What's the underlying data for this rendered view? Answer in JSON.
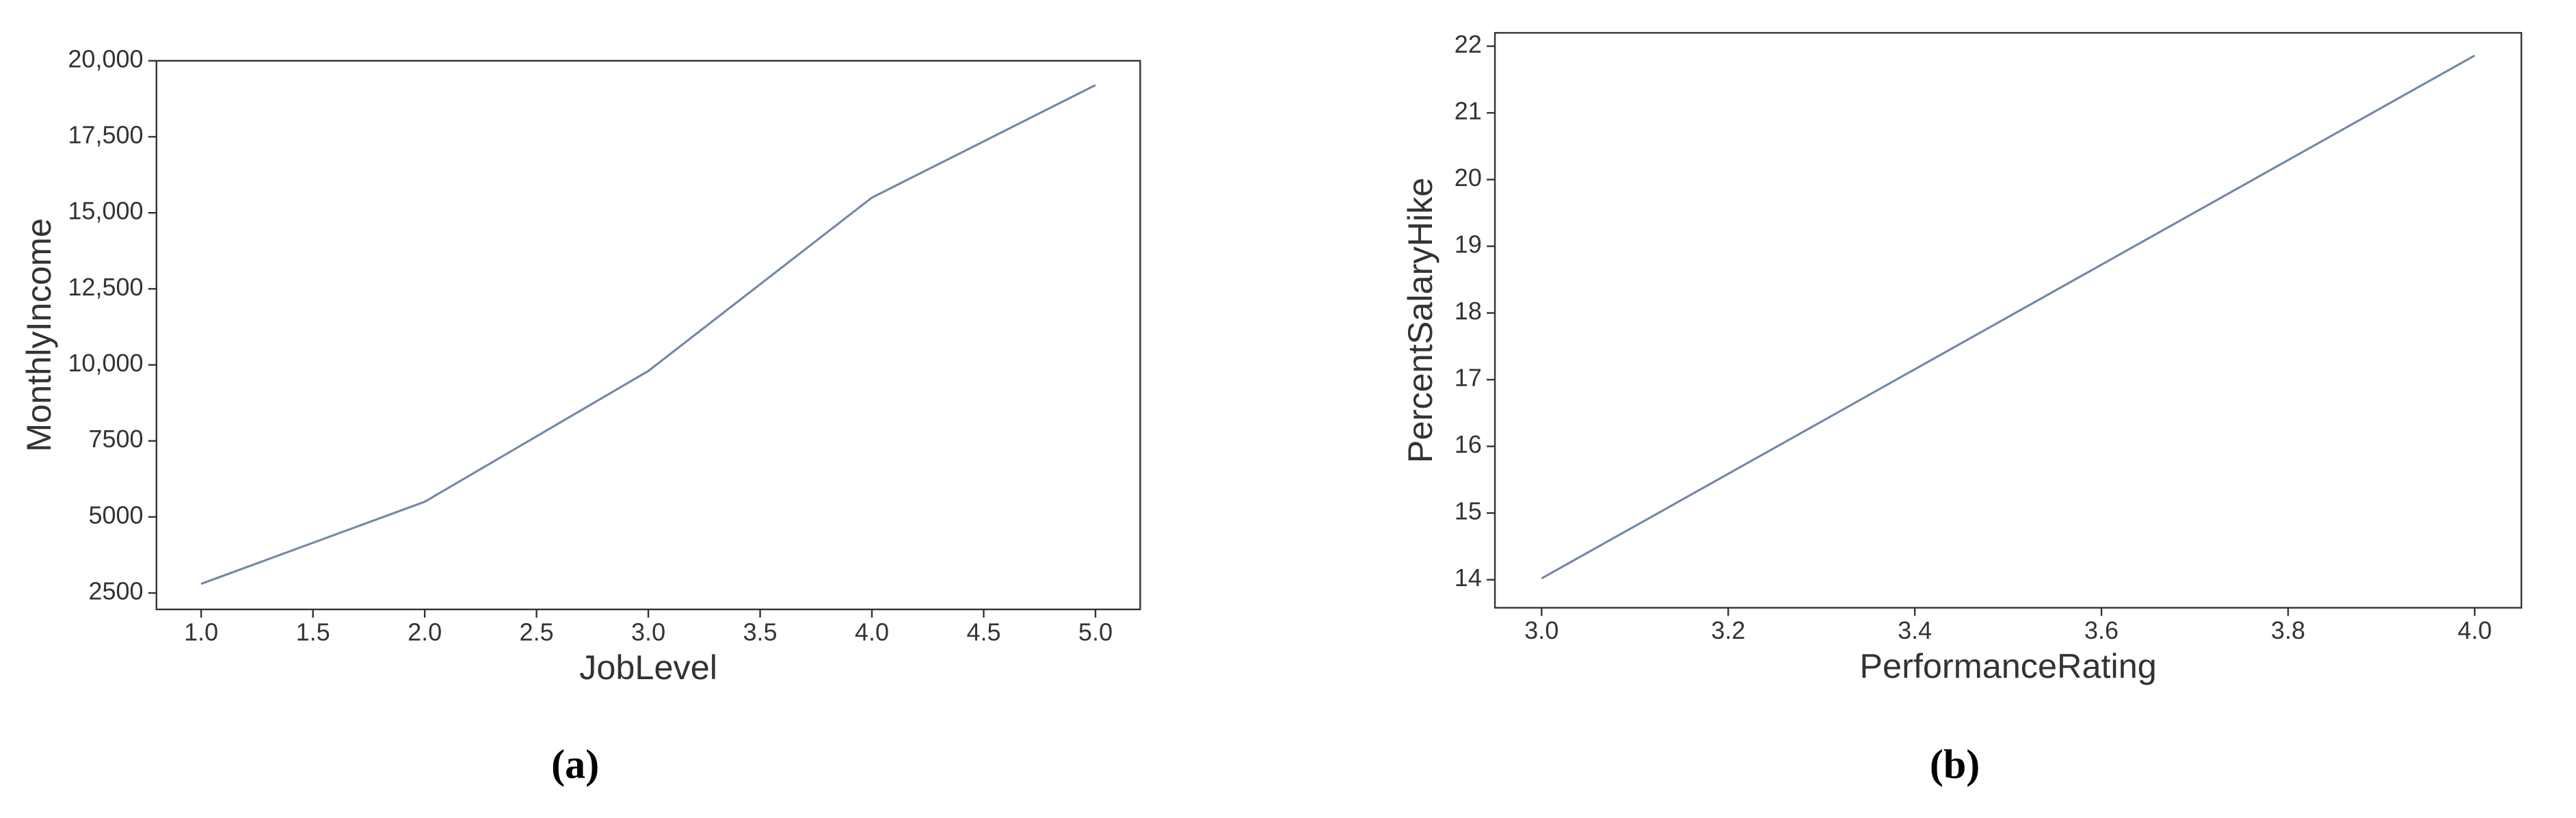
{
  "chart_data": [
    {
      "type": "line",
      "x_label": "JobLevel",
      "y_label": "MonthlyIncome",
      "caption": "(a)",
      "x": [
        1,
        2,
        3,
        4,
        5
      ],
      "series": [
        {
          "color": "#7388a8",
          "values": [
            2800,
            5500,
            9800,
            15500,
            19200
          ]
        }
      ],
      "xlim": [
        0.8,
        5.2
      ],
      "ylim": [
        1960,
        20000
      ],
      "xticks": [
        {
          "value": 1,
          "label": "1.0"
        },
        {
          "value": 1.5,
          "label": "1.5"
        },
        {
          "value": 2,
          "label": "2.0"
        },
        {
          "value": 2.5,
          "label": "2.5"
        },
        {
          "value": 3,
          "label": "3.0"
        },
        {
          "value": 3.5,
          "label": "3.5"
        },
        {
          "value": 4,
          "label": "4.0"
        },
        {
          "value": 4.5,
          "label": "4.5"
        },
        {
          "value": 5,
          "label": "5.0"
        }
      ],
      "yticks": [
        2500,
        5000,
        7500,
        {
          "value": 10000,
          "label": "10,000"
        },
        {
          "value": 12500,
          "label": "12,500"
        },
        {
          "value": 15000,
          "label": "15,000"
        },
        {
          "value": 17500,
          "label": "17,500"
        },
        {
          "value": 20000,
          "label": "20,000"
        }
      ]
    },
    {
      "type": "line",
      "x_label": "PerformanceRating",
      "y_label": "PercentSalaryHike",
      "caption": "(b)",
      "x": [
        3,
        4
      ],
      "series": [
        {
          "color": "#7388a8",
          "values": [
            14.02,
            21.86
          ]
        }
      ],
      "xlim": [
        2.95,
        4.05
      ],
      "ylim": [
        13.58,
        22.2
      ],
      "xticks": [
        {
          "value": 3,
          "label": "3.0"
        },
        {
          "value": 3.2,
          "label": "3.2"
        },
        {
          "value": 3.4,
          "label": "3.4"
        },
        {
          "value": 3.6,
          "label": "3.6"
        },
        {
          "value": 3.8,
          "label": "3.8"
        },
        {
          "value": 4,
          "label": "4.0"
        }
      ],
      "yticks": [
        14,
        15,
        16,
        17,
        18,
        19,
        20,
        21,
        22
      ]
    }
  ]
}
